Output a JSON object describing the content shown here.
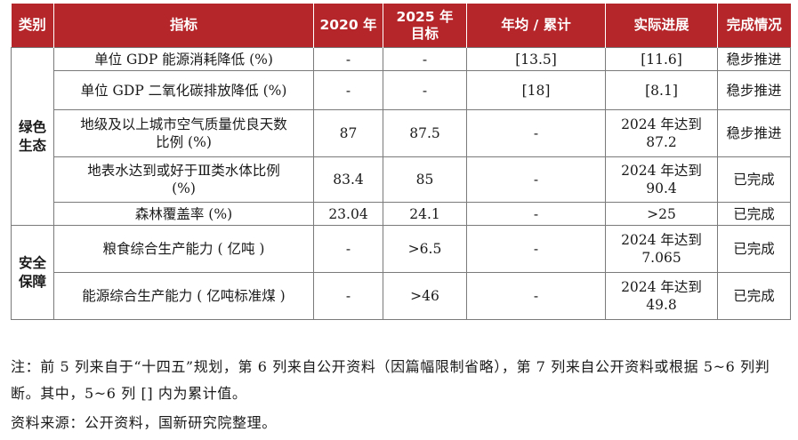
{
  "headers": [
    "类别",
    "指标",
    "2020 年",
    "2025 年\n目标",
    "年均 / 累计",
    "实际进展",
    "完成情况"
  ],
  "categories": {
    "green": "绿色\n生态",
    "security": "安全\n保障"
  },
  "rows": [
    {
      "indicator": "单位 GDP 能源消耗降低 (%)",
      "y2020": "-",
      "y2025": "-",
      "annual": "[13.5]",
      "progress": "[11.6]",
      "status": "稳步推进"
    },
    {
      "indicator": "单位 GDP 二氧化碳排放降低 (%)",
      "y2020": "-",
      "y2025": "-",
      "annual": "[18]",
      "progress": "[8.1]",
      "status": "稳步推进"
    },
    {
      "indicator": "地级及以上城市空气质量优良天数\n比例 (%)",
      "y2020": "87",
      "y2025": "87.5",
      "annual": "-",
      "progress": "2024 年达到\n87.2",
      "status": "稳步推进"
    },
    {
      "indicator": "地表水达到或好于Ⅲ类水体比例\n(%)",
      "y2020": "83.4",
      "y2025": "85",
      "annual": "-",
      "progress": "2024 年达到\n90.4",
      "status": "已完成"
    },
    {
      "indicator": "森林覆盖率 (%)",
      "y2020": "23.04",
      "y2025": "24.1",
      "annual": "-",
      "progress": ">25",
      "status": "已完成"
    },
    {
      "indicator": "粮食综合生产能力 ( 亿吨 )",
      "y2020": "-",
      "y2025": ">6.5",
      "annual": "-",
      "progress": "2024 年达到\n7.065",
      "status": "已完成"
    },
    {
      "indicator": "能源综合生产能力 ( 亿吨标准煤 )",
      "y2020": "-",
      "y2025": ">46",
      "annual": "-",
      "progress": "2024 年达到\n49.8",
      "status": "已完成"
    }
  ],
  "note": "注：前 5 列来自于“十四五”规划，第 6 列来自公开资料（因篇幅限制省略），第 7 列来自公开资料或根据 5~6 列判断。其中，5~6 列 [] 内为累计值。",
  "source": "资料来源：公开资料，国新研究院整理。"
}
